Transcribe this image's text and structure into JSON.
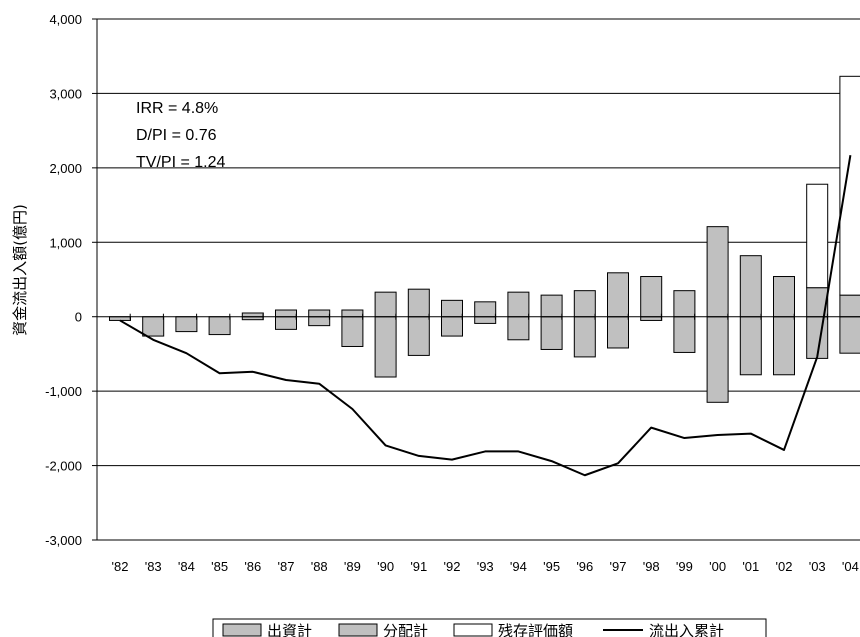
{
  "chart_data": {
    "type": "bar",
    "ylabel": "資金流出入額(億円)",
    "ylim": [
      -3000,
      4000
    ],
    "yticks": [
      "4,000",
      "3,000",
      "2,000",
      "1,000",
      "0",
      "-1,000",
      "-2,000",
      "-3,000"
    ],
    "grid": true,
    "categories": [
      "'82",
      "'83",
      "'84",
      "'85",
      "'86",
      "'87",
      "'88",
      "'89",
      "'90",
      "'91",
      "'92",
      "'93",
      "'94",
      "'95",
      "'96",
      "'97",
      "'98",
      "'99",
      "'00",
      "'01",
      "'02",
      "'03",
      "'04"
    ],
    "series": [
      {
        "name": "出資計",
        "kind": "bar",
        "color": "#c0c0c0",
        "values": [
          -50,
          -260,
          -200,
          -240,
          -40,
          -170,
          -120,
          -400,
          -810,
          -520,
          -260,
          -90,
          -310,
          -440,
          -540,
          -420,
          -50,
          -480,
          -1150,
          -780,
          -780,
          -560,
          -490
        ]
      },
      {
        "name": "分配計",
        "kind": "bar",
        "color": "#c0c0c0",
        "values": [
          0,
          0,
          0,
          0,
          50,
          90,
          90,
          90,
          330,
          370,
          220,
          200,
          330,
          290,
          350,
          590,
          540,
          350,
          1210,
          820,
          540,
          390,
          290
        ]
      },
      {
        "name": "残存評価額",
        "kind": "bar-stacked",
        "color": "#ffffff",
        "values": [
          0,
          0,
          0,
          0,
          0,
          0,
          0,
          0,
          0,
          0,
          0,
          0,
          0,
          0,
          0,
          0,
          0,
          0,
          0,
          0,
          0,
          1390,
          2940
        ]
      },
      {
        "name": "流出入累計",
        "kind": "line",
        "color": "#000000",
        "values": [
          -50,
          -310,
          -490,
          -760,
          -740,
          -850,
          -900,
          -1240,
          -1730,
          -1870,
          -1920,
          -1810,
          -1810,
          -1940,
          -2130,
          -1970,
          -1490,
          -1630,
          -1590,
          -1570,
          -1790,
          -540,
          2170
        ]
      }
    ],
    "annotations": [
      "IRR = 4.8%",
      "D/PI = 0.76",
      "TV/PI = 1.24"
    ],
    "legend": {
      "position": "bottom"
    }
  }
}
